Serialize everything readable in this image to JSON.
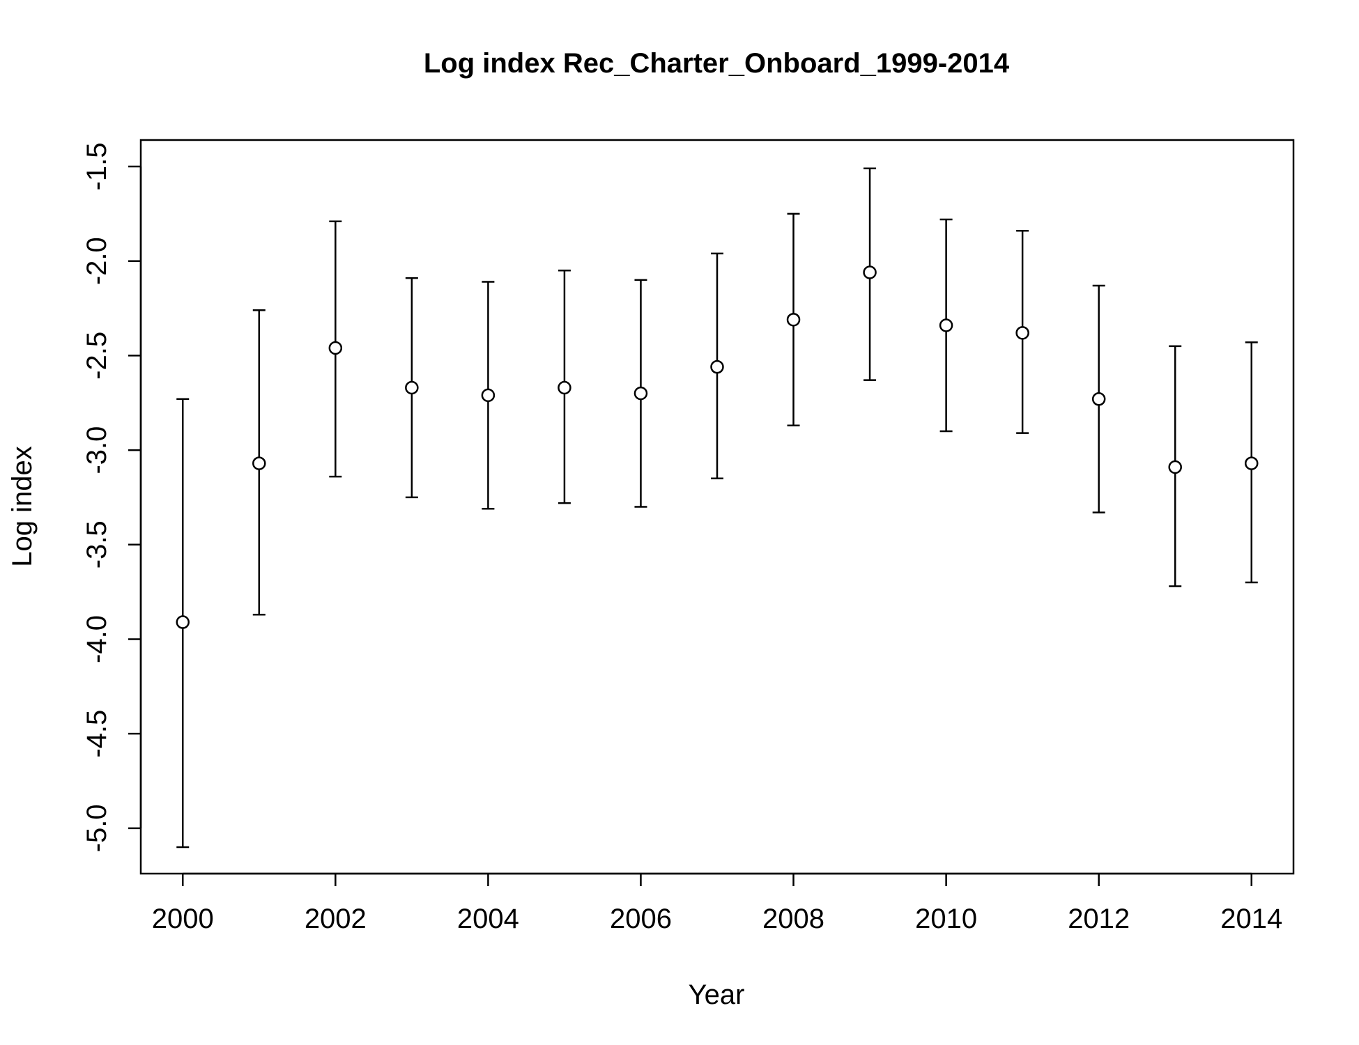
{
  "chart_data": {
    "type": "scatter",
    "title": "Log index Rec_Charter_Onboard_1999-2014",
    "xlabel": "Year",
    "ylabel": "Log index",
    "xlim": [
      1999.45,
      2014.55
    ],
    "ylim": [
      -5.24,
      -1.36
    ],
    "x_ticks": [
      2000,
      2002,
      2004,
      2006,
      2008,
      2010,
      2012,
      2014
    ],
    "x_tick_labels": [
      "2000",
      "2002",
      "2004",
      "2006",
      "2008",
      "2010",
      "2012",
      "2014"
    ],
    "y_ticks": [
      -5.0,
      -4.5,
      -4.0,
      -3.5,
      -3.0,
      -2.5,
      -2.0,
      -1.5
    ],
    "y_tick_labels": [
      "-5.0",
      "-4.5",
      "-4.0",
      "-3.5",
      "-3.0",
      "-2.5",
      "-2.0",
      "-1.5"
    ],
    "grid": false,
    "points": [
      {
        "x": 2000,
        "y": -3.91,
        "lower": -5.1,
        "upper": -2.73
      },
      {
        "x": 2001,
        "y": -3.07,
        "lower": -3.87,
        "upper": -2.26
      },
      {
        "x": 2002,
        "y": -2.46,
        "lower": -3.14,
        "upper": -1.79
      },
      {
        "x": 2003,
        "y": -2.67,
        "lower": -3.25,
        "upper": -2.09
      },
      {
        "x": 2004,
        "y": -2.71,
        "lower": -3.31,
        "upper": -2.11
      },
      {
        "x": 2005,
        "y": -2.67,
        "lower": -3.28,
        "upper": -2.05
      },
      {
        "x": 2006,
        "y": -2.7,
        "lower": -3.3,
        "upper": -2.1
      },
      {
        "x": 2007,
        "y": -2.56,
        "lower": -3.15,
        "upper": -1.96
      },
      {
        "x": 2008,
        "y": -2.31,
        "lower": -2.87,
        "upper": -1.75
      },
      {
        "x": 2009,
        "y": -2.06,
        "lower": -2.63,
        "upper": -1.51
      },
      {
        "x": 2010,
        "y": -2.34,
        "lower": -2.9,
        "upper": -1.78
      },
      {
        "x": 2011,
        "y": -2.38,
        "lower": -2.91,
        "upper": -1.84
      },
      {
        "x": 2012,
        "y": -2.73,
        "lower": -3.33,
        "upper": -2.13
      },
      {
        "x": 2013,
        "y": -3.09,
        "lower": -3.72,
        "upper": -2.45
      },
      {
        "x": 2014,
        "y": -3.07,
        "lower": -3.7,
        "upper": -2.43
      }
    ]
  }
}
